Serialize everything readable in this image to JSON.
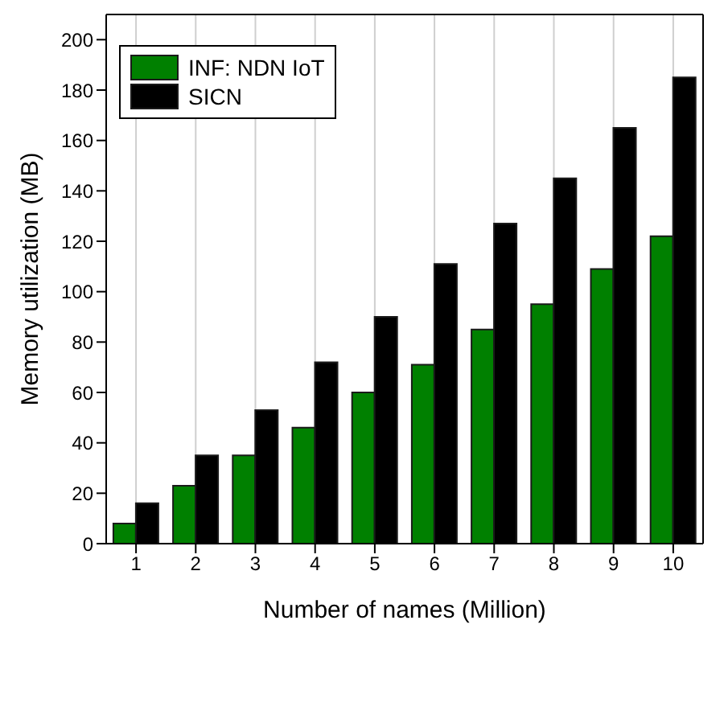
{
  "chart_data": {
    "type": "bar",
    "xlabel": "Number of names (Million)",
    "ylabel": "Memory utilization (MB)",
    "categories": [
      "1",
      "2",
      "3",
      "4",
      "5",
      "6",
      "7",
      "8",
      "9",
      "10"
    ],
    "series": [
      {
        "name": "INF: NDN IoT",
        "color": "#008000",
        "values": [
          8,
          23,
          35,
          46,
          60,
          71,
          85,
          95,
          109,
          122
        ]
      },
      {
        "name": "SICN",
        "color": "#000000",
        "values": [
          16,
          35,
          53,
          72,
          90,
          111,
          127,
          145,
          165,
          185
        ]
      }
    ],
    "ylim": [
      0,
      210
    ],
    "yticks": [
      0,
      20,
      40,
      60,
      80,
      100,
      120,
      140,
      160,
      180,
      200
    ],
    "grid": true,
    "legend": "top left"
  }
}
